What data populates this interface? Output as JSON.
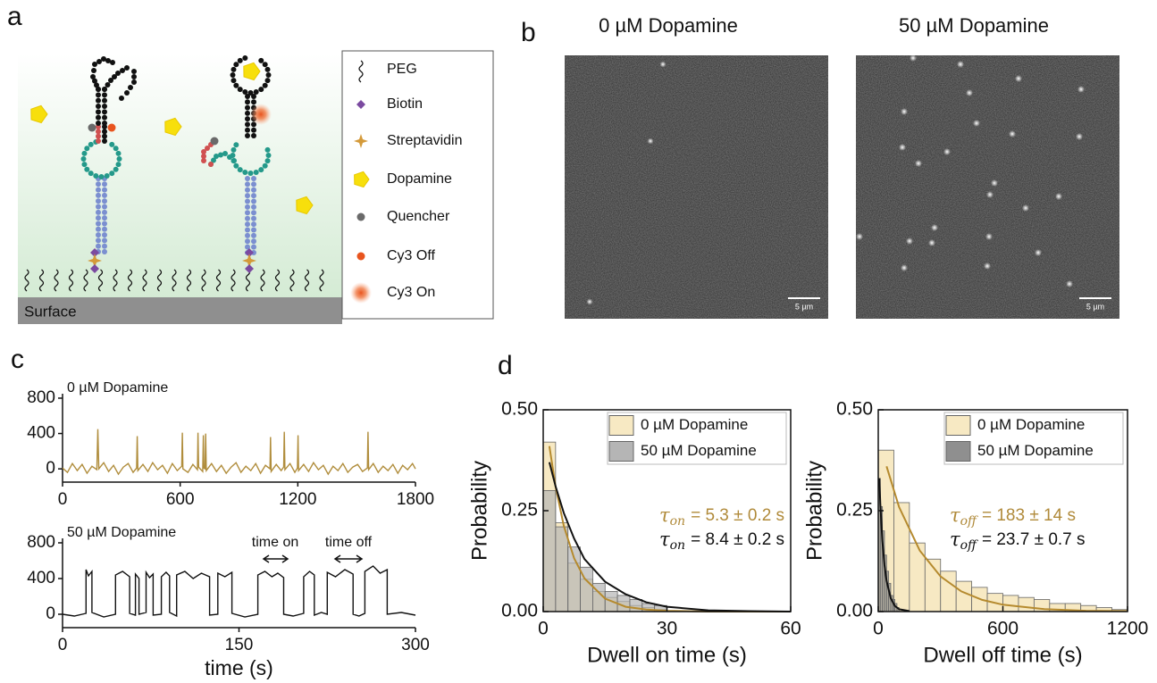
{
  "panel_labels": [
    "a",
    "b",
    "c",
    "d"
  ],
  "panel_a": {
    "surface_label": "Surface",
    "legend": [
      "PEG",
      "Biotin",
      "Streptavidin",
      "Dopamine",
      "Quencher",
      "Cy3 Off",
      "Cy3 On"
    ]
  },
  "panel_b": {
    "titles": [
      "0 µM Dopamine",
      "50 µM Dopamine"
    ],
    "scale_bar": "5 µm"
  },
  "chart_data": [
    {
      "type": "line",
      "title": "0 µM Dopamine",
      "color": "#b08d3c",
      "x": [
        0,
        25,
        50,
        75,
        100,
        125,
        150,
        175,
        180,
        185,
        210,
        235,
        260,
        285,
        310,
        335,
        360,
        378,
        381,
        384,
        410,
        435,
        460,
        485,
        510,
        535,
        560,
        585,
        608,
        611,
        614,
        640,
        665,
        688,
        691,
        694,
        715,
        718,
        721,
        727,
        730,
        733,
        760,
        785,
        810,
        835,
        860,
        885,
        910,
        935,
        960,
        985,
        1010,
        1035,
        1058,
        1061,
        1064,
        1090,
        1115,
        1128,
        1131,
        1134,
        1160,
        1185,
        1198,
        1201,
        1204,
        1230,
        1255,
        1280,
        1305,
        1330,
        1355,
        1380,
        1405,
        1430,
        1455,
        1480,
        1505,
        1530,
        1555,
        1558,
        1561,
        1585,
        1610,
        1635,
        1660,
        1685,
        1710,
        1735,
        1760,
        1785,
        1800
      ],
      "values": [
        10,
        -40,
        60,
        -20,
        50,
        -50,
        30,
        -10,
        450,
        0,
        70,
        -30,
        40,
        -60,
        20,
        60,
        -40,
        10,
        370,
        -20,
        50,
        -30,
        70,
        -10,
        40,
        -50,
        60,
        -20,
        30,
        410,
        0,
        -40,
        50,
        -10,
        410,
        20,
        -30,
        380,
        10,
        0,
        400,
        -20,
        60,
        -30,
        40,
        -50,
        20,
        70,
        -40,
        30,
        -20,
        60,
        -50,
        40,
        0,
        360,
        -30,
        50,
        -20,
        20,
        420,
        -10,
        60,
        -40,
        10,
        380,
        -20,
        50,
        -30,
        70,
        -10,
        40,
        -60,
        30,
        -20,
        60,
        -40,
        20,
        50,
        -30,
        10,
        420,
        -10,
        60,
        -40,
        30,
        -20,
        50,
        -50,
        40,
        -10,
        60,
        0
      ],
      "xlim": [
        0,
        1800
      ],
      "xticks": [
        0,
        600,
        1200,
        1800
      ],
      "ylim": [
        -150,
        850
      ],
      "yticks": [
        0,
        400,
        800
      ]
    },
    {
      "type": "line",
      "title": "50 µM Dopamine",
      "x_label": "time (s)",
      "color": "#111111",
      "x": [
        0,
        10,
        20,
        20,
        22,
        25,
        25,
        35,
        45,
        45,
        51,
        57,
        57,
        62,
        62,
        65,
        65,
        71,
        71,
        74,
        77,
        77,
        84,
        84,
        88,
        91,
        91,
        97,
        97,
        104,
        111,
        118,
        125,
        125,
        132,
        132,
        138,
        144,
        144,
        155,
        166,
        166,
        172,
        178,
        183,
        188,
        188,
        196,
        205,
        205,
        210,
        214,
        214,
        220,
        225,
        225,
        232,
        240,
        247,
        247,
        252,
        257,
        257,
        264,
        270,
        276,
        276,
        288,
        300
      ],
      "values": [
        0,
        -20,
        10,
        500,
        430,
        480,
        20,
        -30,
        0,
        440,
        480,
        420,
        10,
        -10,
        450,
        400,
        0,
        20,
        470,
        410,
        450,
        -10,
        0,
        420,
        470,
        430,
        20,
        -20,
        440,
        480,
        400,
        460,
        420,
        -10,
        0,
        460,
        420,
        470,
        10,
        -30,
        0,
        440,
        480,
        420,
        460,
        410,
        0,
        -20,
        10,
        420,
        480,
        440,
        -10,
        20,
        0,
        470,
        420,
        500,
        450,
        0,
        -20,
        10,
        480,
        540,
        460,
        500,
        0,
        20,
        -10
      ],
      "xlim": [
        0,
        300
      ],
      "xticks": [
        0,
        150,
        300
      ],
      "ylim": [
        -150,
        850
      ],
      "yticks": [
        0,
        400,
        800
      ],
      "annotations": [
        "time on",
        "time off"
      ]
    },
    {
      "type": "histogram",
      "x_label": "Dwell on time (s)",
      "y_label": "Probability",
      "xlim": [
        0,
        60
      ],
      "xticks": [
        0,
        30,
        60
      ],
      "ylim": [
        0,
        0.5
      ],
      "yticks": [
        {
          "value": 0,
          "label": "0.00"
        },
        {
          "value": 0.25,
          "label": "0.25"
        },
        {
          "value": 0.5,
          "label": "0.50"
        }
      ],
      "legend": "upper right",
      "series": [
        {
          "name": "0 µM Dopamine",
          "color": "#f7e9c3",
          "bins": [
            0,
            3,
            6,
            9,
            12,
            15,
            18,
            21,
            24,
            27,
            30
          ],
          "values": [
            0.42,
            0.22,
            0.12,
            0.08,
            0.05,
            0.035,
            0.025,
            0.015,
            0.01,
            0.005
          ],
          "fit": {
            "color": "#b58a2e",
            "x": [
              1.5,
              3,
              5,
              7.5,
              10,
              15,
              20,
              25,
              30,
              40,
              50,
              60
            ],
            "values": [
              0.41,
              0.309,
              0.212,
              0.132,
              0.082,
              0.032,
              0.012,
              0.005,
              0.002,
              0,
              0,
              0
            ]
          }
        },
        {
          "name": "50 µM Dopamine",
          "color": "#b5b5b5",
          "bins": [
            0,
            3,
            6,
            9,
            12,
            15,
            18,
            21,
            24,
            27,
            30
          ],
          "values": [
            0.3,
            0.21,
            0.16,
            0.11,
            0.07,
            0.05,
            0.04,
            0.03,
            0.02,
            0.015
          ],
          "fit": {
            "color": "#111111",
            "x": [
              1.5,
              3,
              5,
              7.5,
              10,
              15,
              20,
              25,
              30,
              40,
              50,
              60
            ],
            "values": [
              0.37,
              0.31,
              0.244,
              0.181,
              0.13,
              0.074,
              0.043,
              0.023,
              0.012,
              0.003,
              0.001,
              0
            ]
          }
        }
      ],
      "annotations": [
        {
          "symbol": "τ",
          "subscript": "on",
          "text": "= 5.3 ± 0.2 s",
          "color": "#b08a3a"
        },
        {
          "symbol": "τ",
          "subscript": "on",
          "text": "= 8.4 ± 0.2 s",
          "color": "#111111"
        }
      ]
    },
    {
      "type": "histogram",
      "x_label": "Dwell off time (s)",
      "y_label": "Probability",
      "xlim": [
        0,
        1200
      ],
      "xticks": [
        0,
        600,
        1200
      ],
      "ylim": [
        0,
        0.5
      ],
      "yticks": [
        {
          "value": 0,
          "label": "0.00"
        },
        {
          "value": 0.25,
          "label": "0.25"
        },
        {
          "value": 0.5,
          "label": "0.50"
        }
      ],
      "legend": "upper right",
      "series": [
        {
          "name": "0 µM Dopamine",
          "color": "#f7e9c3",
          "bins": [
            0,
            75,
            150,
            225,
            300,
            375,
            450,
            525,
            600,
            675,
            750,
            825,
            900,
            975,
            1050,
            1125,
            1200
          ],
          "values": [
            0.4,
            0.27,
            0.17,
            0.13,
            0.1,
            0.075,
            0.06,
            0.045,
            0.04,
            0.035,
            0.03,
            0.02,
            0.02,
            0.015,
            0.01,
            0.005
          ],
          "fit": {
            "color": "#b58a2e",
            "x": [
              40,
              100,
              200,
              300,
              400,
              500,
              600,
              800,
              1000,
              1200
            ],
            "values": [
              0.36,
              0.259,
              0.151,
              0.087,
              0.05,
              0.029,
              0.017,
              0.006,
              0.002,
              0.001
            ]
          }
        },
        {
          "name": "50 µM Dopamine",
          "color": "#8f8f8f",
          "bins": [
            0,
            10,
            20,
            30,
            40,
            50,
            60,
            70,
            80,
            90,
            100
          ],
          "values": [
            0.33,
            0.26,
            0.2,
            0.14,
            0.1,
            0.07,
            0.04,
            0.03,
            0.02,
            0.01
          ],
          "fit": {
            "color": "#111111",
            "x": [
              5,
              10,
              20,
              30,
              40,
              60,
              80,
              100,
              150
            ],
            "values": [
              0.33,
              0.267,
              0.175,
              0.115,
              0.076,
              0.033,
              0.014,
              0.006,
              0.001
            ]
          }
        }
      ],
      "annotations": [
        {
          "symbol": "τ",
          "subscript": "off",
          "text": "= 183 ± 14 s",
          "color": "#b08a3a"
        },
        {
          "symbol": "τ",
          "subscript": "off",
          "text": "= 23.7 ± 0.7 s",
          "color": "#111111"
        }
      ]
    }
  ]
}
